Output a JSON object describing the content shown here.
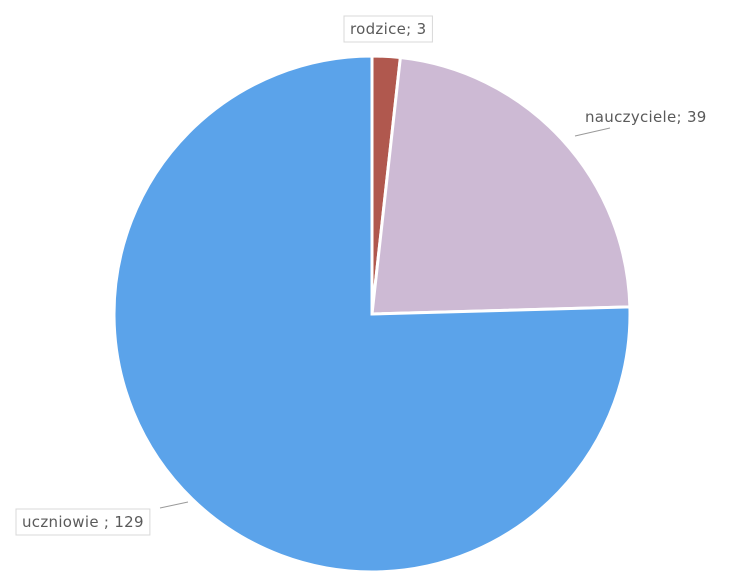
{
  "chart_data": {
    "type": "pie",
    "slices": [
      {
        "label": "rodzice",
        "value": 3,
        "text": "rodzice; 3",
        "color": "#b0584e"
      },
      {
        "label": "nauczyciele",
        "value": 39,
        "text": "nauczyciele; 39",
        "color": "#cdbad4"
      },
      {
        "label": "uczniowie",
        "value": 129,
        "text": "uczniowie ; 129",
        "color": "#5ba3ea"
      }
    ],
    "start_angle": "12 o'clock",
    "direction": "clockwise",
    "labels": "outside with leader lines",
    "legend": "none"
  }
}
